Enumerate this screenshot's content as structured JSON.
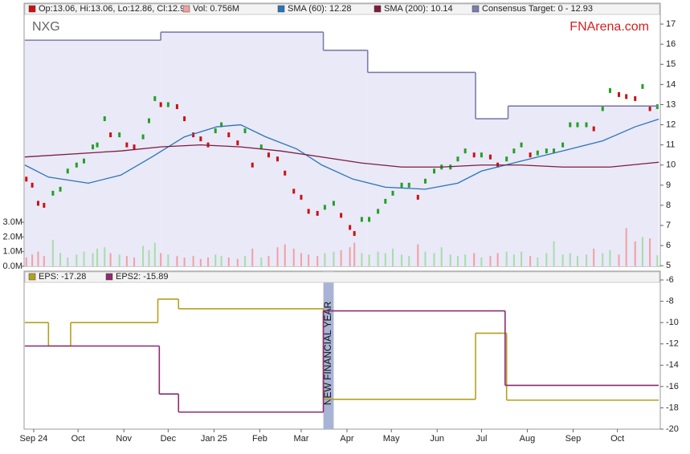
{
  "chart_data": [
    {
      "type": "stock",
      "title": "NXG",
      "watermark": "FNArena.com",
      "xlim": [
        -6.5,
        424
      ],
      "xticks": [
        {
          "value": 0,
          "label": "Sep 24"
        },
        {
          "value": 30,
          "label": "Oct"
        },
        {
          "value": 61,
          "label": "Nov"
        },
        {
          "value": 91,
          "label": "Dec"
        },
        {
          "value": 122,
          "label": "Jan 25"
        },
        {
          "value": 153,
          "label": "Feb"
        },
        {
          "value": 181,
          "label": "Mar"
        },
        {
          "value": 212,
          "label": "Apr"
        },
        {
          "value": 242,
          "label": "May"
        },
        {
          "value": 273,
          "label": "Jun"
        },
        {
          "value": 303,
          "label": "Jul"
        },
        {
          "value": 334,
          "label": "Aug"
        },
        {
          "value": 365,
          "label": "Sep"
        },
        {
          "value": 395,
          "label": "Oct"
        }
      ],
      "ylim": [
        4.97,
        17.48
      ],
      "yticks": [
        5,
        6,
        7,
        8,
        9,
        10,
        11,
        12,
        13,
        14,
        15,
        16,
        17
      ],
      "y2lim": [
        0,
        17.16
      ],
      "y2ticks": [
        {
          "value": 0,
          "label": "0.0M"
        },
        {
          "value": 1,
          "label": "1.0M"
        },
        {
          "value": 2,
          "label": "2.0M"
        },
        {
          "value": 3,
          "label": "3.0M"
        }
      ],
      "x": [
        -5,
        -1,
        3,
        7,
        13,
        18,
        23,
        29,
        34,
        40,
        43,
        48,
        52,
        58,
        63,
        68,
        74,
        78,
        82,
        86,
        91,
        97,
        102,
        108,
        113,
        118,
        123,
        127,
        132,
        138,
        143,
        148,
        154,
        159,
        165,
        170,
        176,
        181,
        186,
        192,
        197,
        203,
        208,
        214,
        217,
        222,
        227,
        233,
        238,
        243,
        249,
        254,
        260,
        265,
        271,
        276,
        282,
        287,
        292,
        298,
        303,
        309,
        314,
        320,
        325,
        330,
        336,
        341,
        347,
        352,
        358,
        363,
        368,
        374,
        379,
        385,
        390,
        396,
        401,
        407,
        412,
        417,
        422
      ],
      "series": [
        {
          "name": "Op:13.06, Hi:13.06, Lo:12.86, Cl:12.9",
          "color": "#cc1111",
          "up_color": "#22a022",
          "values": [
            9.3,
            9.0,
            8.1,
            8.0,
            8.6,
            8.8,
            9.7,
            10.0,
            10.2,
            10.9,
            11.0,
            12.3,
            11.5,
            11.5,
            11.0,
            10.9,
            11.4,
            12.2,
            13.3,
            13.0,
            13.0,
            12.9,
            12.3,
            11.5,
            11.3,
            11.0,
            11.7,
            12.0,
            11.5,
            11.1,
            11.7,
            10.0,
            10.9,
            10.5,
            10.3,
            9.6,
            8.7,
            8.4,
            7.7,
            7.6,
            7.9,
            8.1,
            7.5,
            6.9,
            6.6,
            7.3,
            7.3,
            7.7,
            8.2,
            8.6,
            9.0,
            9.0,
            8.4,
            9.2,
            9.7,
            9.9,
            9.9,
            10.3,
            10.7,
            10.5,
            10.5,
            10.4,
            10.0,
            10.3,
            10.7,
            11.0,
            10.5,
            10.6,
            10.7,
            10.7,
            11.0,
            12.0,
            12.0,
            12.0,
            11.8,
            12.8,
            13.7,
            13.5,
            13.4,
            13.3,
            13.9,
            12.8,
            12.9
          ]
        },
        {
          "name": "Vol: 0.756M",
          "color": "#f2a0a0",
          "up_color": "#a6dea6",
          "axis": "y2",
          "values": [
            0.6,
            0.8,
            1.0,
            0.7,
            1.8,
            0.9,
            0.6,
            0.8,
            1.0,
            0.9,
            1.2,
            1.3,
            0.9,
            0.8,
            0.7,
            0.6,
            1.4,
            1.1,
            1.6,
            0.9,
            0.8,
            0.7,
            0.6,
            0.7,
            0.5,
            0.6,
            0.8,
            0.7,
            0.6,
            0.5,
            0.7,
            1.2,
            0.6,
            0.7,
            1.3,
            1.5,
            1.2,
            0.9,
            0.8,
            0.7,
            0.9,
            1.0,
            1.1,
            1.3,
            1.6,
            0.9,
            0.8,
            1.0,
            0.9,
            1.2,
            0.8,
            0.7,
            1.5,
            1.0,
            0.9,
            1.3,
            0.8,
            0.7,
            0.8,
            0.9,
            0.6,
            0.7,
            0.9,
            1.0,
            0.8,
            1.0,
            0.7,
            0.6,
            0.9,
            1.7,
            0.8,
            0.9,
            0.7,
            0.8,
            1.2,
            0.9,
            1.1,
            0.8,
            2.6,
            1.7,
            2.0,
            1.9,
            0.756
          ]
        },
        {
          "name": "SMA (60): 12.28",
          "color": "#2a74b8",
          "x": [
            -6,
            10,
            37,
            59,
            80,
            102,
            124,
            140,
            157,
            178,
            195,
            216,
            238,
            265,
            287,
            303,
            330,
            358,
            385,
            407,
            423
          ],
          "values": [
            10.0,
            9.4,
            9.1,
            9.5,
            10.4,
            11.4,
            11.9,
            12.0,
            11.4,
            10.8,
            10.0,
            9.3,
            8.9,
            8.8,
            9.1,
            9.7,
            10.2,
            10.7,
            11.2,
            11.9,
            12.28
          ]
        },
        {
          "name": "SMA (200): 10.14",
          "color": "#7d1c3e",
          "x": [
            -6,
            59,
            86,
            113,
            140,
            167,
            195,
            222,
            249,
            276,
            303,
            330,
            358,
            390,
            423
          ],
          "values": [
            10.4,
            10.7,
            10.9,
            11.0,
            10.9,
            10.7,
            10.4,
            10.1,
            9.9,
            9.9,
            10.0,
            10.0,
            9.9,
            9.9,
            10.14
          ]
        },
        {
          "name": "Consensus Target: 0 - 12.93",
          "color": "#7c7cae",
          "fill": "#e9e9f8",
          "step": true,
          "x": [
            -6,
            86,
            196,
            226,
            299,
            321
          ],
          "values": [
            16.2,
            16.6,
            15.7,
            14.6,
            12.3,
            12.93
          ]
        }
      ]
    },
    {
      "type": "step",
      "xlim": [
        -6.5,
        424
      ],
      "ylim": [
        -20,
        -5.17
      ],
      "yticks": [
        -20,
        -18,
        -16,
        -14,
        -12,
        -10,
        -8,
        -6
      ],
      "annotation": {
        "text": "NEW FINANCIAL YEAR",
        "x": [
          196,
          203
        ],
        "color": "#a9b3d6"
      },
      "series": [
        {
          "name": "EPS: -17.28",
          "color": "#b5a01e",
          "x": [
            -6,
            10,
            25,
            84,
            98,
            196,
            299,
            320
          ],
          "values": [
            -10,
            -12.2,
            -10,
            -7.8,
            -8.7,
            -17.2,
            -11,
            -17.28
          ]
        },
        {
          "name": "EPS2: -15.89",
          "color": "#8c2c6e",
          "x": [
            -6,
            85,
            98,
            196,
            319
          ],
          "values": [
            -12.2,
            -16.7,
            -18.4,
            -8.9,
            -15.89
          ]
        }
      ]
    }
  ]
}
